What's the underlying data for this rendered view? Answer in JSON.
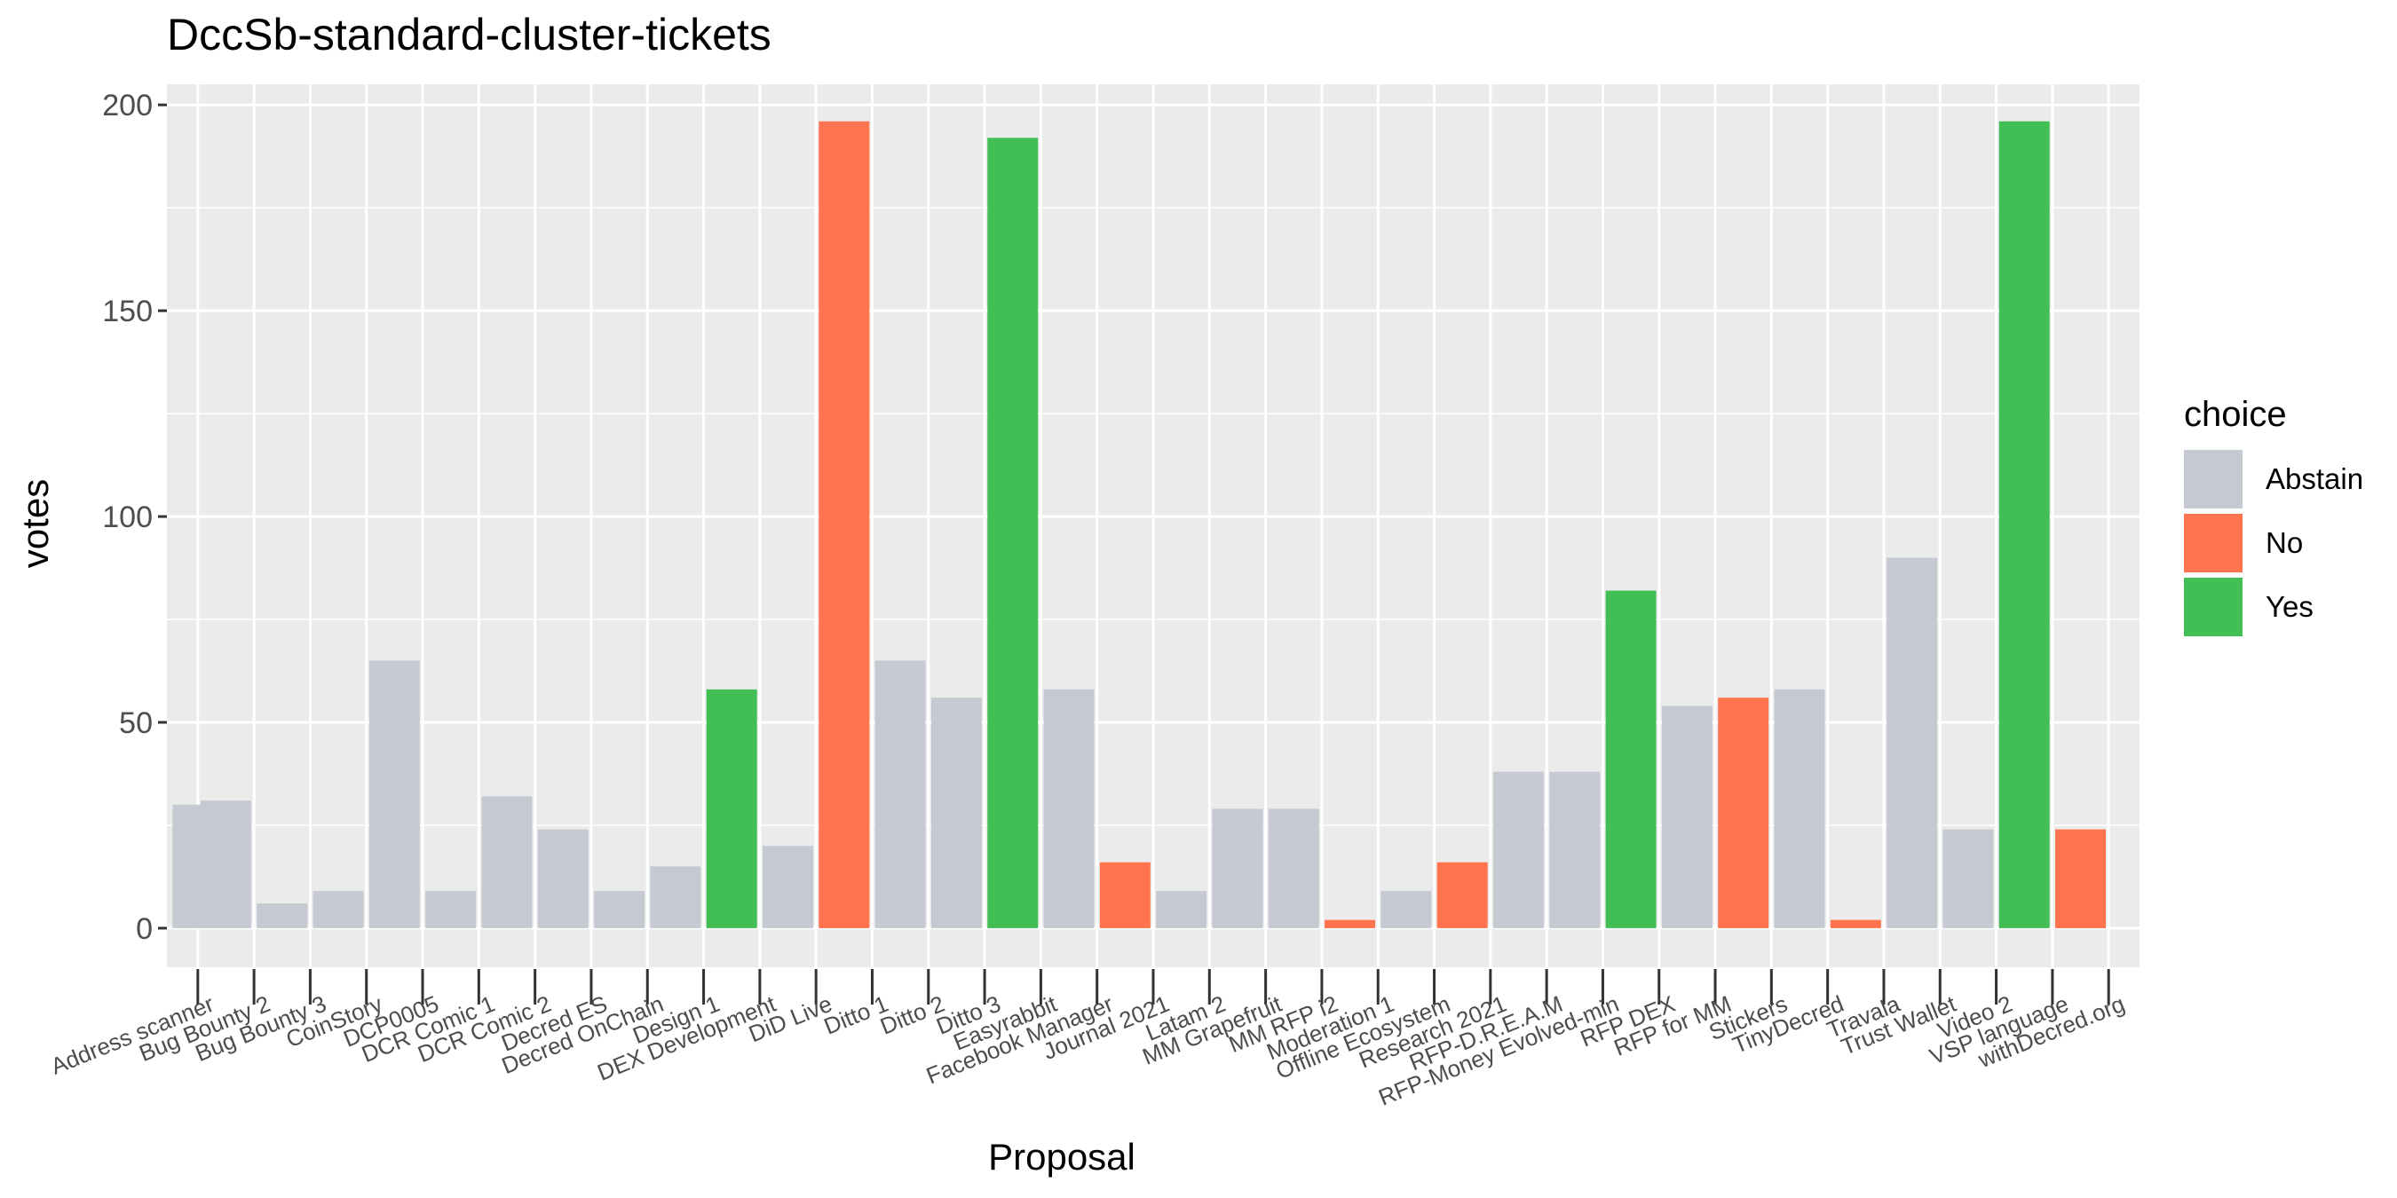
{
  "chart_data": {
    "type": "bar",
    "title": "DccSb-standard-cluster-tickets",
    "xlabel": "Proposal",
    "ylabel": "votes",
    "ylim": [
      -9.5,
      205
    ],
    "yticks": [
      0,
      50,
      100,
      150,
      200
    ],
    "legend": {
      "title": "choice",
      "position": "right",
      "entries": [
        {
          "label": "Abstain",
          "color": "#C5CAD2"
        },
        {
          "label": "No",
          "color": "#FF734F"
        },
        {
          "label": "Yes",
          "color": "#41BF54"
        }
      ]
    },
    "categories": [
      "Address scanner",
      "Bug Bounty 2",
      "Bug Bounty 3",
      "CoinStory",
      "DCP0005",
      "DCR Comic 1",
      "DCR Comic 2",
      "Decred ES",
      "Decred OnChain",
      "Design 1",
      "DEX Development",
      "DiD Live",
      "Ditto 1",
      "Ditto 2",
      "Ditto 3",
      "Easyrabbit",
      "Facebook Manager",
      "Journal 2021",
      "Latam 2",
      "MM Grapefruit",
      "MM RFP i2",
      "Moderation 1",
      "Offline Ecosystem",
      "Research 2021",
      "RFP-D.R.E.A.M",
      "RFP-Money Evolved-min",
      "RFP DEX",
      "RFP for MM",
      "Stickers",
      "TinyDecred",
      "Travala",
      "Trust Wallet",
      "Video 2",
      "VSP language",
      "withDecred.org"
    ],
    "bars": [
      {
        "x": 0,
        "value": 30,
        "choice": "Abstain"
      },
      {
        "x": 0.5,
        "value": 31,
        "choice": "Abstain"
      },
      {
        "x": 1.5,
        "value": 6,
        "choice": "Abstain"
      },
      {
        "x": 2.5,
        "value": 9,
        "choice": "Abstain"
      },
      {
        "x": 3.5,
        "value": 65,
        "choice": "Abstain"
      },
      {
        "x": 4.5,
        "value": 9,
        "choice": "Abstain"
      },
      {
        "x": 5.5,
        "value": 32,
        "choice": "Abstain"
      },
      {
        "x": 6.5,
        "value": 24,
        "choice": "Abstain"
      },
      {
        "x": 7.5,
        "value": 9,
        "choice": "Abstain"
      },
      {
        "x": 8.5,
        "value": 15,
        "choice": "Abstain"
      },
      {
        "x": 9.5,
        "value": 58,
        "choice": "Yes"
      },
      {
        "x": 10.5,
        "value": 20,
        "choice": "Abstain"
      },
      {
        "x": 11.5,
        "value": 196,
        "choice": "No"
      },
      {
        "x": 12.5,
        "value": 65,
        "choice": "Abstain"
      },
      {
        "x": 13.5,
        "value": 56,
        "choice": "Abstain"
      },
      {
        "x": 14.5,
        "value": 192,
        "choice": "Yes"
      },
      {
        "x": 15.5,
        "value": 58,
        "choice": "Abstain"
      },
      {
        "x": 16.5,
        "value": 16,
        "choice": "No"
      },
      {
        "x": 17.5,
        "value": 9,
        "choice": "Abstain"
      },
      {
        "x": 18.5,
        "value": 29,
        "choice": "Abstain"
      },
      {
        "x": 19.5,
        "value": 29,
        "choice": "Abstain"
      },
      {
        "x": 20.5,
        "value": 2,
        "choice": "No"
      },
      {
        "x": 21.5,
        "value": 9,
        "choice": "Abstain"
      },
      {
        "x": 22.5,
        "value": 16,
        "choice": "No"
      },
      {
        "x": 23.5,
        "value": 38,
        "choice": "Abstain"
      },
      {
        "x": 24.5,
        "value": 38,
        "choice": "Abstain"
      },
      {
        "x": 25.5,
        "value": 82,
        "choice": "Yes"
      },
      {
        "x": 26.5,
        "value": 54,
        "choice": "Abstain"
      },
      {
        "x": 27.5,
        "value": 56,
        "choice": "No"
      },
      {
        "x": 28.5,
        "value": 58,
        "choice": "Abstain"
      },
      {
        "x": 29.5,
        "value": 2,
        "choice": "No"
      },
      {
        "x": 30.5,
        "value": 90,
        "choice": "Abstain"
      },
      {
        "x": 31.5,
        "value": 24,
        "choice": "Abstain"
      },
      {
        "x": 32.5,
        "value": 196,
        "choice": "Yes"
      },
      {
        "x": 33.5,
        "value": 24,
        "choice": "No"
      }
    ]
  }
}
